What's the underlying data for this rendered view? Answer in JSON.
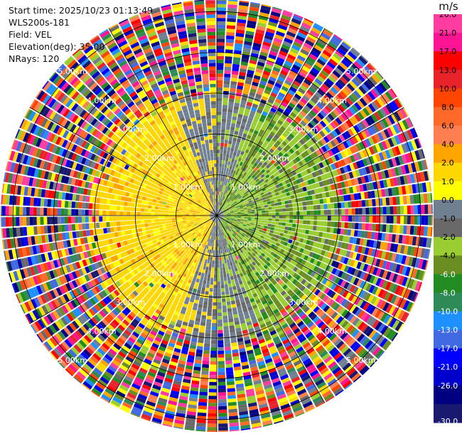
{
  "info": {
    "start_time": "Start time: 2025/10/23 01:13:49",
    "instrument": "WLS200s-181",
    "field": "Field: VEL",
    "elevation": "Elevation(deg): 35.00",
    "nrays": "NRays: 120"
  },
  "colorbar": {
    "unit": "m/s",
    "ticks": [
      "26.0",
      "21.0",
      "17.0",
      "13.0",
      "10.0",
      "8.0",
      "6.0",
      "4.0",
      "2.0",
      "1.0",
      "0.0",
      "-1.0",
      "-2.0",
      "-4.0",
      "-6.0",
      "-8.0",
      "-10.0",
      "-13.0",
      "-17.0",
      "-21.0",
      "-26.0",
      "-30.0"
    ],
    "colors": [
      "#ff3da0",
      "#ff1493",
      "#ff0000",
      "#e8232a",
      "#ff4500",
      "#ff6a2a",
      "#ff7f50",
      "#ffa500",
      "#ffd700",
      "#ffff00",
      "#708090",
      "#696969",
      "#9acd32",
      "#6b8e23",
      "#228b22",
      "#2e8b57",
      "#1e90ff",
      "#4169e1",
      "#0000ff",
      "#0000cd",
      "#000080",
      "#191970"
    ]
  },
  "chart_data": {
    "type": "heatmap",
    "title": "",
    "field": "VEL",
    "units": "m/s",
    "scan": "PPI",
    "elevation_deg": 35.0,
    "n_rays": 120,
    "range_rings_km": [
      1.0,
      2.0,
      3.0,
      4.0,
      5.0
    ],
    "range_ring_labels": [
      "1.00km",
      "2.00km",
      "3.00km",
      "4.00km",
      "5.00km"
    ],
    "max_range_km": 5.3,
    "spoke_azimuths_deg": [
      0,
      30,
      60,
      90,
      120,
      150,
      180,
      210,
      240,
      270,
      300,
      330
    ],
    "label_azimuths_deg": [
      45,
      135,
      225,
      315
    ],
    "velocity_pattern": {
      "near_field_km": 2.8,
      "west_sector": "positive 2 to 4 m/s (yellow / gold)",
      "east_sector": "negative -1 to -6 m/s (yellow-green / olive / green)",
      "north_and_south": "near 0 m/s (grey)",
      "beyond_km": 3.0,
      "far_field": "noise across the full -30 to 26 m/s range"
    }
  }
}
